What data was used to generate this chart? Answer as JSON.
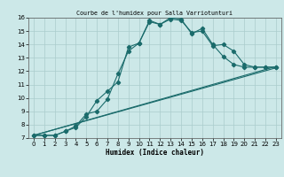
{
  "title": "Courbe de l'humidex pour Salla Varriotunturi",
  "xlabel": "Humidex (Indice chaleur)",
  "xlim": [
    -0.5,
    23.5
  ],
  "ylim": [
    7,
    16
  ],
  "xticks": [
    0,
    1,
    2,
    3,
    4,
    5,
    6,
    7,
    8,
    9,
    10,
    11,
    12,
    13,
    14,
    15,
    16,
    17,
    18,
    19,
    20,
    21,
    22,
    23
  ],
  "yticks": [
    7,
    8,
    9,
    10,
    11,
    12,
    13,
    14,
    15,
    16
  ],
  "bg_color": "#cce8e8",
  "grid_color": "#aacccc",
  "line_color": "#1a6b6b",
  "curve1_x": [
    0,
    1,
    2,
    3,
    4,
    5,
    6,
    7,
    8,
    9,
    10,
    11,
    12,
    13,
    14,
    15,
    16,
    17,
    18,
    19,
    20,
    21,
    22,
    23
  ],
  "curve1_y": [
    7.2,
    7.2,
    7.2,
    7.5,
    7.8,
    8.6,
    9.8,
    10.5,
    11.2,
    13.8,
    14.1,
    15.8,
    15.5,
    16.0,
    15.9,
    14.8,
    15.2,
    14.0,
    13.1,
    12.5,
    12.3,
    12.3,
    12.3,
    12.3
  ],
  "curve2_x": [
    0,
    1,
    2,
    3,
    4,
    5,
    6,
    7,
    8,
    9,
    10,
    11,
    12,
    13,
    14,
    15,
    16,
    17,
    18,
    19,
    20,
    21,
    22,
    23
  ],
  "curve2_y": [
    7.2,
    7.2,
    7.2,
    7.5,
    7.9,
    8.8,
    9.0,
    9.9,
    11.8,
    13.5,
    14.1,
    15.7,
    15.5,
    15.9,
    15.8,
    14.9,
    15.0,
    13.9,
    14.0,
    13.5,
    12.5,
    12.3,
    12.3,
    12.3
  ],
  "line1_x": [
    0,
    23
  ],
  "line1_y": [
    7.2,
    12.35
  ],
  "line2_x": [
    0,
    23
  ],
  "line2_y": [
    7.2,
    12.25
  ]
}
